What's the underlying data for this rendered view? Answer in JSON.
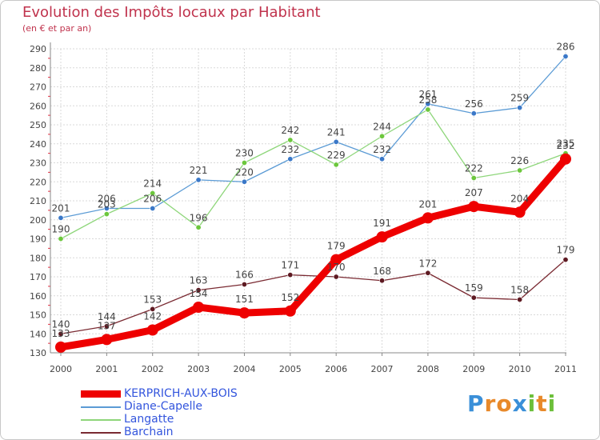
{
  "title": "Evolution des Impôts locaux par Habitant",
  "subtitle": "(en € et par an)",
  "logo": {
    "text": "Proxiti",
    "letters": [
      "P",
      "r",
      "o",
      "x",
      "i",
      "t",
      "i"
    ],
    "colors": [
      "#3a8fd8",
      "#e8892a",
      "#e8892a",
      "#3a8fd8",
      "#6cbf3a",
      "#e8892a",
      "#6cbf3a"
    ]
  },
  "chart_data": {
    "type": "line",
    "title": "Evolution des Impôts locaux par Habitant",
    "subtitle": "(en € et par an)",
    "xlabel": "",
    "ylabel": "",
    "categories": [
      "2000",
      "2001",
      "2002",
      "2003",
      "2004",
      "2005",
      "2006",
      "2007",
      "2008",
      "2009",
      "2010",
      "2011"
    ],
    "y_ticks": [
      130,
      140,
      150,
      160,
      170,
      180,
      190,
      200,
      210,
      220,
      230,
      240,
      250,
      260,
      270,
      280,
      290
    ],
    "ylim": [
      130,
      290
    ],
    "grid": true,
    "legend_position": "bottom-left",
    "series": [
      {
        "name": "Diane-Capelle",
        "color": "#5b9bd5",
        "marker": "#3a78c8",
        "width": "thin",
        "values": [
          201,
          206,
          206,
          221,
          220,
          232,
          241,
          232,
          261,
          256,
          259,
          286
        ]
      },
      {
        "name": "Langatte",
        "color": "#8ed67a",
        "marker": "#6cc73c",
        "width": "thin",
        "values": [
          190,
          203,
          214,
          196,
          230,
          242,
          229,
          244,
          258,
          222,
          226,
          235
        ]
      },
      {
        "name": "Barchain",
        "color": "#7a2a32",
        "marker": "#5e1a22",
        "width": "thin",
        "values": [
          140,
          144,
          153,
          163,
          166,
          171,
          170,
          168,
          172,
          159,
          158,
          179
        ]
      },
      {
        "name": "KERPRICH-AUX-BOIS",
        "color": "#ee0000",
        "marker": "#ee0000",
        "width": "thick",
        "values": [
          133,
          137,
          142,
          154,
          151,
          152,
          179,
          191,
          201,
          207,
          204,
          232
        ]
      }
    ],
    "legend_order": [
      "KERPRICH-AUX-BOIS",
      "Diane-Capelle",
      "Langatte",
      "Barchain"
    ]
  }
}
